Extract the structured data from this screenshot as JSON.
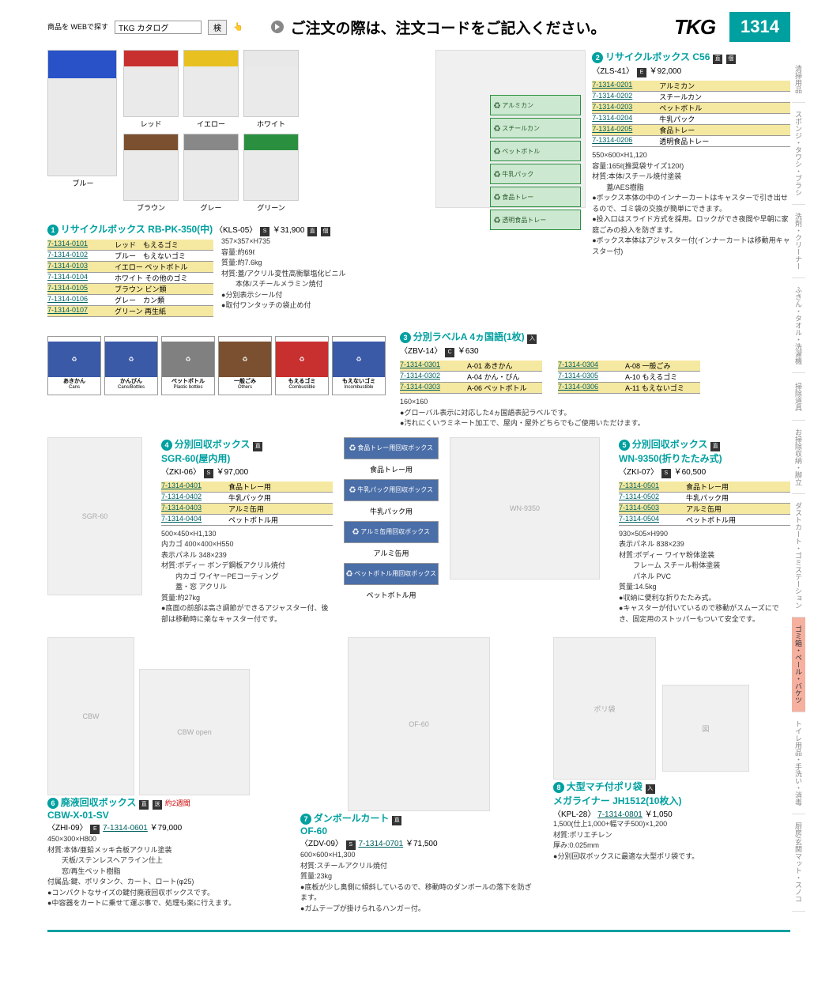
{
  "topbar": {
    "search_label": "商品を\nWEBで探す",
    "search_value": "TKG カタログ",
    "search_btn": "検",
    "headline": "ご注文の際は、注文コードをご記入ください。",
    "brand": "TKG",
    "pagenum": "1314"
  },
  "sidetabs": [
    "清掃用品",
    "スポンジ・タワシ・ブラシ",
    "洗剤・クリーナー",
    "ふきん・タオル・洗濯機",
    "掃除道具",
    "お掃除収納・脚立",
    "ダストカート・ゴミステーション",
    "ゴミ箱・ペール・バケツ",
    "トイレ用品・手洗い・消毒",
    "厨房/玄関マット・スノコ"
  ],
  "sidetab_active": 7,
  "p1": {
    "num": "1",
    "title": "リサイクルボックス RB-PK-350(中)",
    "code": "〈KLS-05〉",
    "price": "￥31,900",
    "colors": [
      {
        "name": "ブルー",
        "lid": "#2952c8"
      },
      {
        "name": "レッド",
        "lid": "#c83030"
      },
      {
        "name": "イエロー",
        "lid": "#e8c020"
      },
      {
        "name": "ホワイト",
        "lid": "#e8e8e8"
      },
      {
        "name": "ブラウン",
        "lid": "#7a5030"
      },
      {
        "name": "グレー",
        "lid": "#888"
      },
      {
        "name": "グリーン",
        "lid": "#2a9040"
      }
    ],
    "skus": [
      {
        "code": "7-1314-0101",
        "desc": "レッド　もえるゴミ",
        "hl": true
      },
      {
        "code": "7-1314-0102",
        "desc": "ブルー　もえないゴミ",
        "hl": false
      },
      {
        "code": "7-1314-0103",
        "desc": "イエロー ペットボトル",
        "hl": true
      },
      {
        "code": "7-1314-0104",
        "desc": "ホワイト その他のゴミ",
        "hl": false
      },
      {
        "code": "7-1314-0105",
        "desc": "ブラウン ビン類",
        "hl": true
      },
      {
        "code": "7-1314-0106",
        "desc": "グレー　カン類",
        "hl": false
      },
      {
        "code": "7-1314-0107",
        "desc": "グリーン 再生紙",
        "hl": true
      }
    ],
    "spec": [
      "357×357×H735",
      "容量:約69ℓ",
      "質量:約7.6kg",
      "材質:蓋/アクリル変性高衝撃塩化ビニル",
      "　　本体/スチールメラミン焼付"
    ],
    "bullets": [
      "分別表示シール付",
      "取付ワンタッチの袋止め付"
    ]
  },
  "p2": {
    "num": "2",
    "title": "リサイクルボックス C56",
    "code": "〈ZLS-41〉",
    "price": "￥92,000",
    "skus": [
      {
        "code": "7-1314-0201",
        "desc": "アルミカン",
        "hl": true
      },
      {
        "code": "7-1314-0202",
        "desc": "スチールカン",
        "hl": false
      },
      {
        "code": "7-1314-0203",
        "desc": "ペットボトル",
        "hl": true
      },
      {
        "code": "7-1314-0204",
        "desc": "牛乳パック",
        "hl": false
      },
      {
        "code": "7-1314-0205",
        "desc": "食品トレー",
        "hl": true
      },
      {
        "code": "7-1314-0206",
        "desc": "透明食品トレー",
        "hl": false
      }
    ],
    "spec": [
      "550×600×H1,120",
      "容量:165ℓ(推奨袋サイズ120ℓ)",
      "材質:本体/スチール焼付塗装",
      "　　蓋/AES樹脂"
    ],
    "bullets": [
      "ボックス本体の中のインナーカートはキャスターで引き出せるので、ゴミ袋の交換が簡単にできます。",
      "投入口はスライド方式を採用。ロックができ夜間や早朝に家庭ごみの投入を防ぎます。",
      "ボックス本体はアジャスター付(インナーカートは移動用キャスター付)"
    ],
    "panel_labels": [
      "アルミカン",
      "スチールカン",
      "ペットボトル",
      "牛乳パック",
      "食品トレー",
      "透明食品トレー"
    ]
  },
  "p3": {
    "num": "3",
    "title": "分別ラベルA 4ヵ国語(1枚)",
    "code": "〈ZBV-14〉",
    "price": "￥630",
    "skus": [
      {
        "code": "7-1314-0301",
        "desc": "A-01 あきかん",
        "hl": true
      },
      {
        "code": "7-1314-0302",
        "desc": "A-04 かん・びん",
        "hl": false
      },
      {
        "code": "7-1314-0303",
        "desc": "A-06 ペットボトル",
        "hl": true
      },
      {
        "code": "7-1314-0304",
        "desc": "A-08 一般ごみ",
        "hl": true
      },
      {
        "code": "7-1314-0305",
        "desc": "A-10 もえるゴミ",
        "hl": false
      },
      {
        "code": "7-1314-0306",
        "desc": "A-11 もえないゴミ",
        "hl": true
      }
    ],
    "spec": [
      "160×160"
    ],
    "bullets": [
      "グローバル表示に対応した4ヵ国語表記ラベルです。",
      "汚れにくいラミネート加工で、屋内・屋外どちらでもご使用いただけます。"
    ],
    "labels": [
      {
        "name": "あきかん",
        "sub": "Cans",
        "bg": "#3a5aa8"
      },
      {
        "name": "かんびん",
        "sub": "Cans/Bottles",
        "bg": "#3a5aa8"
      },
      {
        "name": "ペットボトル",
        "sub": "Plastic bottles",
        "bg": "#808080"
      },
      {
        "name": "一般ごみ",
        "sub": "Others",
        "bg": "#7a5030"
      },
      {
        "name": "もえるゴミ",
        "sub": "Combustible",
        "bg": "#c83030"
      },
      {
        "name": "もえないゴミ",
        "sub": "Incombustible",
        "bg": "#3a5aa8"
      }
    ]
  },
  "p4": {
    "num": "4",
    "title": "分別回収ボックス",
    "subtitle": "SGR-60(屋内用)",
    "code": "〈ZKI-06〉",
    "price": "￥97,000",
    "skus": [
      {
        "code": "7-1314-0401",
        "desc": "食品トレー用",
        "hl": true
      },
      {
        "code": "7-1314-0402",
        "desc": "牛乳パック用",
        "hl": false
      },
      {
        "code": "7-1314-0403",
        "desc": "アルミ缶用",
        "hl": true
      },
      {
        "code": "7-1314-0404",
        "desc": "ペットボトル用",
        "hl": false
      }
    ],
    "spec": [
      "500×450×H1,130",
      "内カゴ 400×400×H550",
      "表示パネル 348×239",
      "材質:ボディー ボンデ鋼板アクリル焼付",
      "　　内カゴ ワイヤーPEコーティング",
      "　　蓋・窓 アクリル",
      "質量:約27kg"
    ],
    "bullets": [
      "底面の前部は高さ調節ができるアジャスター付、後部は移動時に楽なキャスター付です。"
    ],
    "mini_labels": [
      "食品トレー用",
      "牛乳パック用",
      "アルミ缶用",
      "ペットボトル用"
    ]
  },
  "p5": {
    "num": "5",
    "title": "分別回収ボックス",
    "subtitle": "WN-9350(折りたたみ式)",
    "code": "〈ZKI-07〉",
    "price": "￥60,500",
    "skus": [
      {
        "code": "7-1314-0501",
        "desc": "食品トレー用",
        "hl": true
      },
      {
        "code": "7-1314-0502",
        "desc": "牛乳パック用",
        "hl": false
      },
      {
        "code": "7-1314-0503",
        "desc": "アルミ缶用",
        "hl": true
      },
      {
        "code": "7-1314-0504",
        "desc": "ペットボトル用",
        "hl": false
      }
    ],
    "spec": [
      "930×505×H990",
      "表示パネル 838×239",
      "材質:ボディー ワイヤ粉体塗装",
      "　　フレーム スチール粉体塗装",
      "　　パネル PVC",
      "質量:14.5kg"
    ],
    "bullets": [
      "収納に便利な折りたたみ式。",
      "キャスターが付いているので移動がスムーズにでき、固定用のストッパーもついて安全です。"
    ]
  },
  "p6": {
    "num": "6",
    "title": "廃液回収ボックス",
    "subtitle": "CBW-X-01-SV",
    "code": "〈ZHI-09〉",
    "sku_code": "7-1314-0601",
    "price": "￥79,000",
    "leadtime": "約2週間",
    "spec": [
      "450×300×H800",
      "材質:本体/亜鉛メッキ合板アクリル塗装",
      "　　天板/ステンレスヘアライン仕上",
      "　　窓/再生ペット樹脂",
      "付属品:鍵、ポリタンク、カート、ロート(φ25)"
    ],
    "bullets": [
      "コンパクトなサイズの鍵付廃液回収ボックスです。",
      "中容器をカートに乗せて運ぶ事で、処理も楽に行えます。"
    ]
  },
  "p7": {
    "num": "7",
    "title": "ダンボールカート",
    "subtitle": "OF-60",
    "code": "〈ZDV-09〉",
    "sku_code": "7-1314-0701",
    "price": "￥71,500",
    "spec": [
      "600×600×H1,300",
      "材質:スチールアクリル焼付",
      "質量:23kg"
    ],
    "bullets": [
      "底板が少し奥側に傾斜しているので、移動時のダンボールの落下を防ぎます。",
      "ガムテープが掛けられるハンガー付。"
    ]
  },
  "p8": {
    "num": "8",
    "title": "大型マチ付ポリ袋",
    "subtitle": "メガライナー JH1512(10枚入)",
    "code": "〈KPL-28〉",
    "sku_code": "7-1314-0801",
    "price": "￥1,050",
    "spec": [
      "1,500(仕上1,000+幅マチ500)×1,200",
      "材質:ポリエチレン",
      "厚み:0.025mm"
    ],
    "bullets": [
      "分別回収ボックスに最適な大型ポリ袋です。"
    ]
  }
}
